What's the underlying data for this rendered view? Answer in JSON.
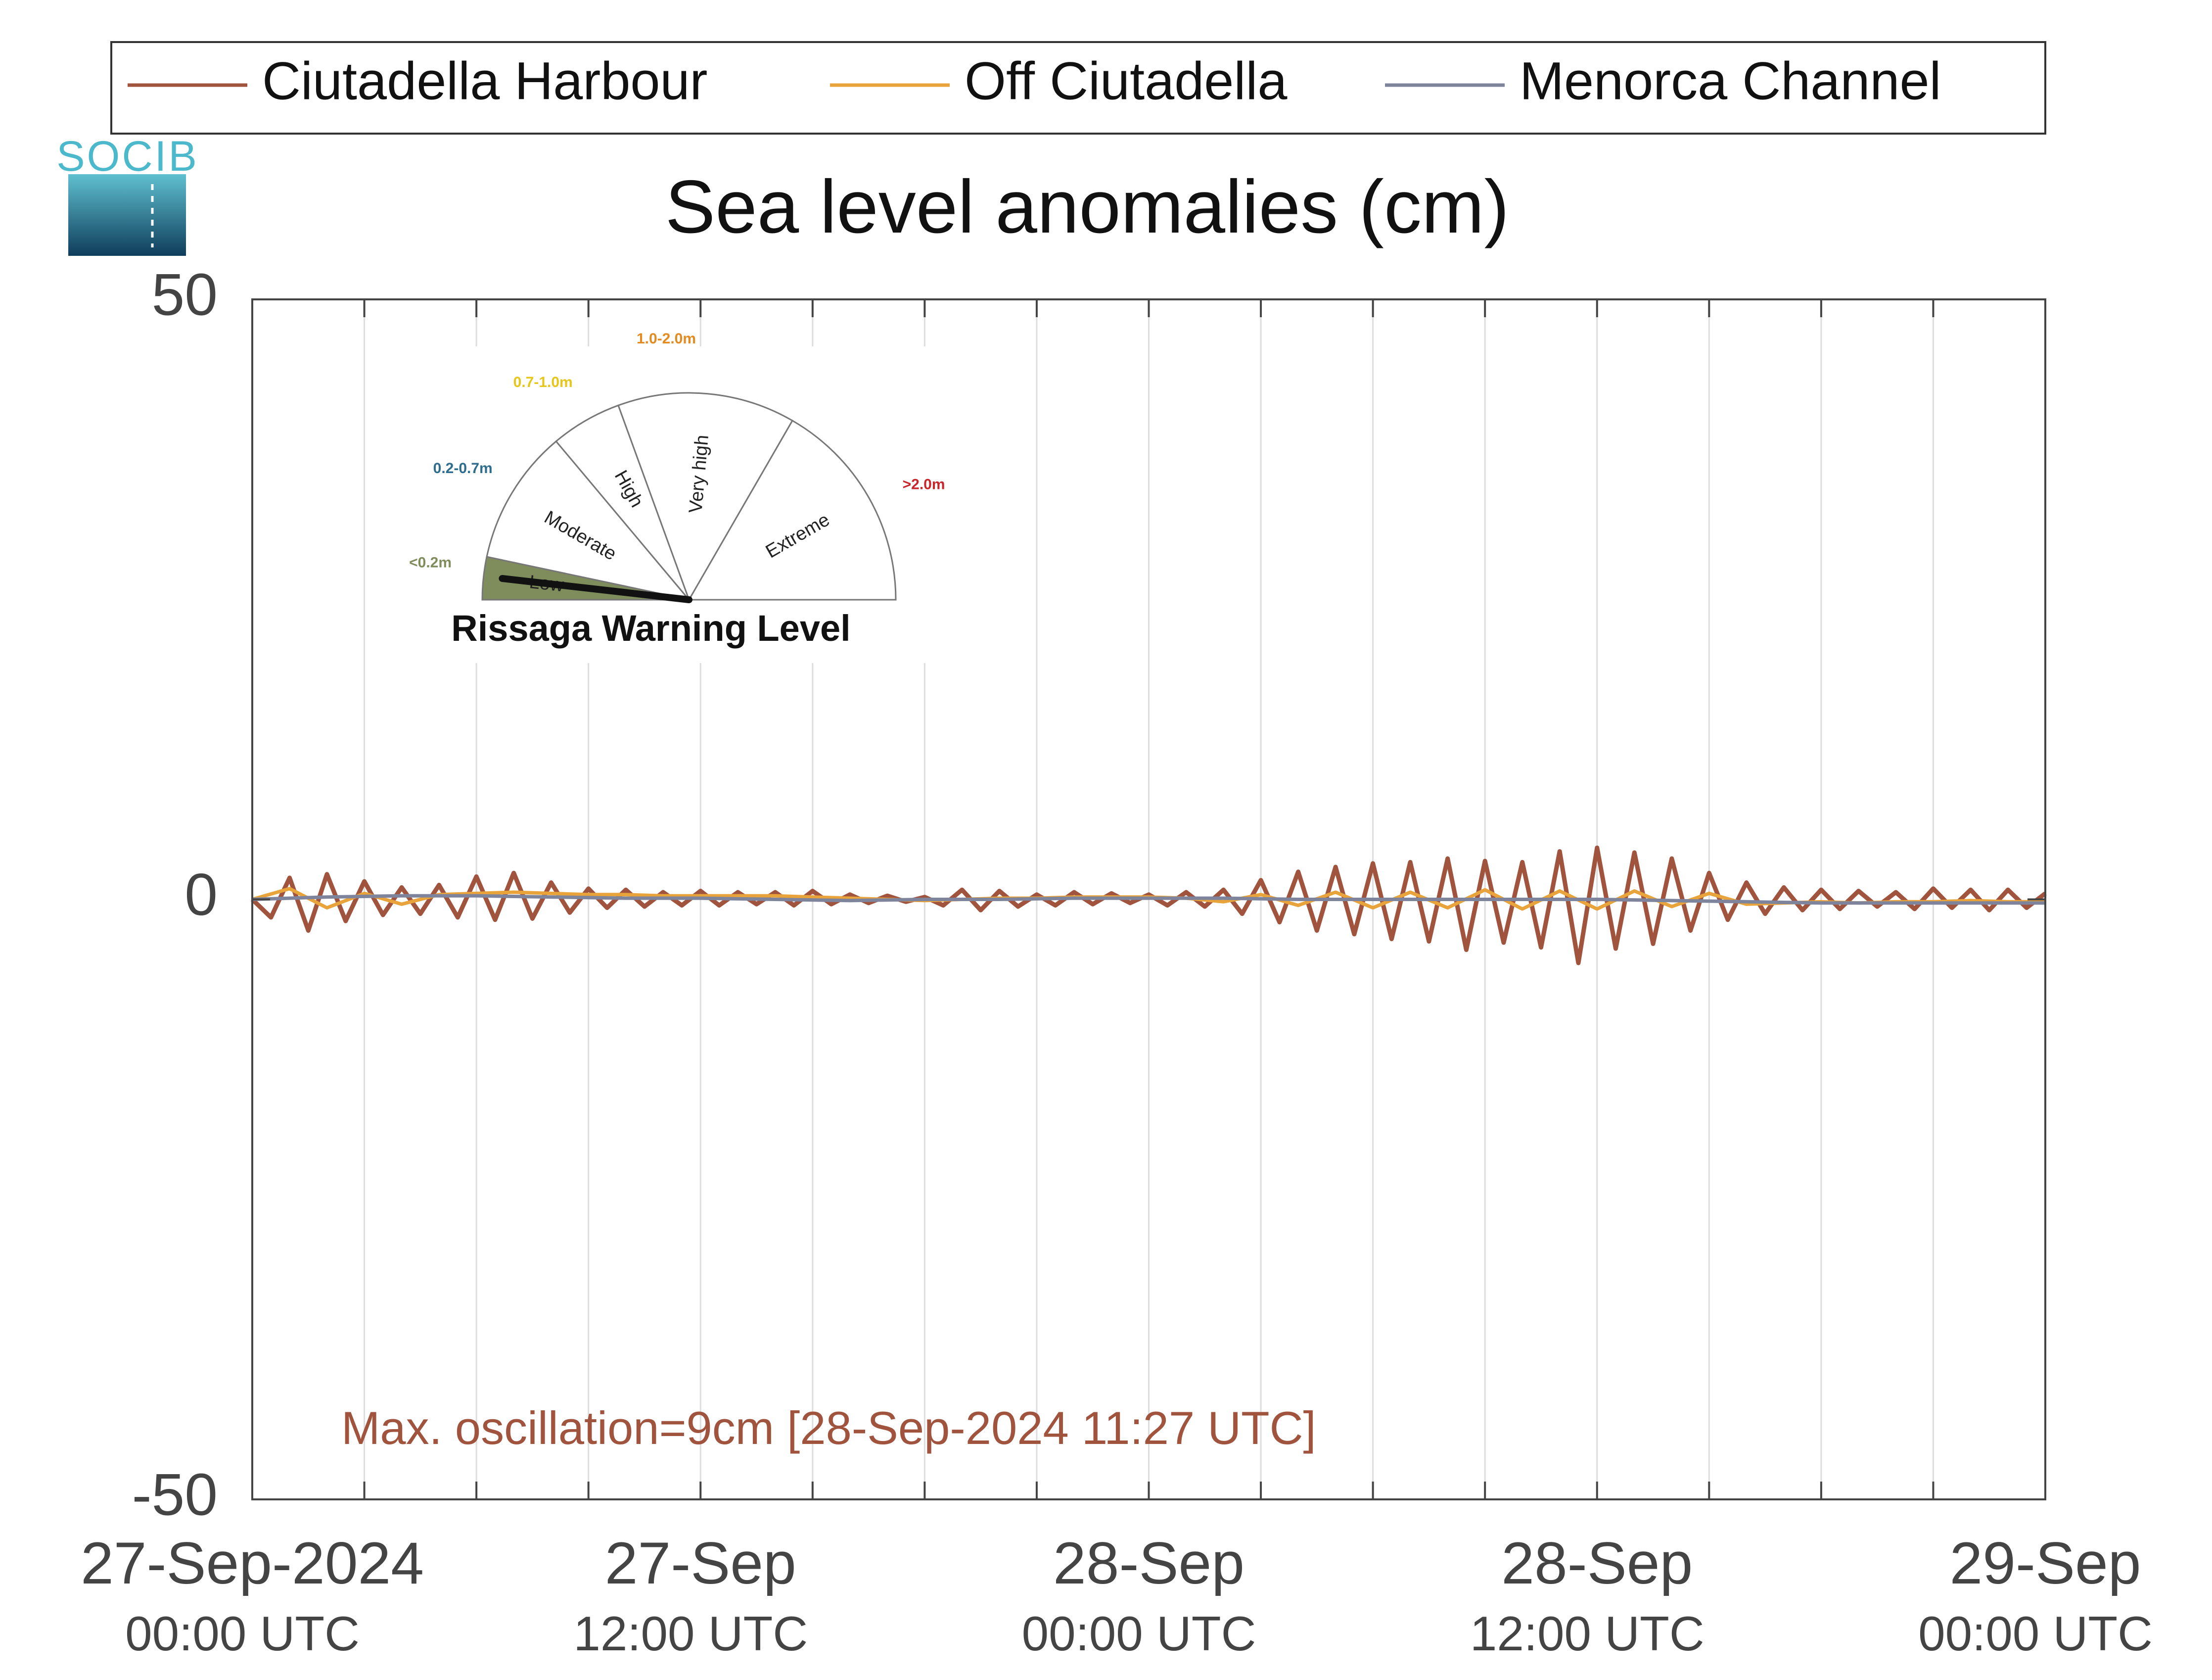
{
  "logo": {
    "text": "SOCIB"
  },
  "legend": {
    "entries": [
      {
        "label": "Ciutadella Harbour",
        "color": "#a0533d"
      },
      {
        "label": "Off Ciutadella",
        "color": "#e8a33a"
      },
      {
        "label": "Menorca Channel",
        "color": "#7d849c"
      }
    ]
  },
  "colors": {
    "axis": "#444444",
    "grid": "#dddddd",
    "annotation": "#a0533d",
    "background": "#ffffff"
  },
  "annotation": {
    "text": "Max. oscillation=9cm [28-Sep-2024 11:27 UTC]"
  },
  "gauge": {
    "title": "Rissaga Warning Level",
    "current_level": "Low",
    "levels": [
      {
        "name": "Low",
        "range": "<0.2m",
        "color": "#7f8c5b",
        "active": true
      },
      {
        "name": "Moderate",
        "range": "0.2-0.7m",
        "color": "#2e6d8e",
        "active": false
      },
      {
        "name": "High",
        "range": "0.7-1.0m",
        "color": "#e6c619",
        "active": false
      },
      {
        "name": "Very high",
        "range": "1.0-2.0m",
        "color": "#e58a1f",
        "active": false
      },
      {
        "name": "Extreme",
        "range": ">2.0m",
        "color": "#c9252b",
        "active": false
      }
    ]
  },
  "chart_data": {
    "type": "line",
    "title": "Sea level anomalies (cm)",
    "xlabel": "",
    "ylabel": "",
    "ylim": [
      -50,
      50
    ],
    "y_ticks": [
      -50,
      0,
      50
    ],
    "x_range_hours": [
      0,
      48
    ],
    "x_ticks": [
      {
        "hour": 0,
        "date": "27-Sep-2024",
        "time": "00:00 UTC"
      },
      {
        "hour": 12,
        "date": "27-Sep",
        "time": "12:00 UTC"
      },
      {
        "hour": 24,
        "date": "28-Sep",
        "time": "00:00 UTC"
      },
      {
        "hour": 36,
        "date": "28-Sep",
        "time": "12:00 UTC"
      },
      {
        "hour": 48,
        "date": "29-Sep",
        "time": "00:00 UTC"
      }
    ],
    "grid_every_hours": 3,
    "grid": true,
    "legend_position": "top",
    "series": [
      {
        "name": "Ciutadella Harbour",
        "color": "#a0533d",
        "x": [
          0,
          0.5,
          1,
          1.5,
          2,
          2.5,
          3,
          3.5,
          4,
          4.5,
          5,
          5.5,
          6,
          6.5,
          7,
          7.5,
          8,
          8.5,
          9,
          9.5,
          10,
          10.5,
          11,
          11.5,
          12,
          12.5,
          13,
          13.5,
          14,
          14.5,
          15,
          15.5,
          16,
          16.5,
          17,
          17.5,
          18,
          18.5,
          19,
          19.5,
          20,
          20.5,
          21,
          21.5,
          22,
          22.5,
          23,
          23.5,
          24,
          24.5,
          25,
          25.5,
          26,
          26.5,
          27,
          27.5,
          28,
          28.5,
          29,
          29.5,
          30,
          30.5,
          31,
          31.5,
          32,
          32.5,
          33,
          33.5,
          34,
          34.5,
          35,
          35.5,
          36,
          36.5,
          37,
          37.5,
          38,
          38.5,
          39,
          39.5,
          40,
          40.5,
          41,
          41.5,
          42,
          42.5,
          43,
          43.5,
          44,
          44.5,
          45,
          45.5,
          46,
          46.5,
          47,
          47.5,
          48
        ],
        "y": [
          0,
          -1.5,
          1.8,
          -2.6,
          2.1,
          -1.8,
          1.5,
          -1.3,
          1.0,
          -1.2,
          1.2,
          -1.5,
          1.9,
          -1.7,
          2.2,
          -1.6,
          1.4,
          -1.1,
          0.9,
          -0.7,
          0.8,
          -0.6,
          0.6,
          -0.5,
          0.7,
          -0.5,
          0.6,
          -0.4,
          0.6,
          -0.5,
          0.7,
          -0.4,
          0.4,
          -0.3,
          0.3,
          -0.2,
          0.2,
          -0.5,
          0.8,
          -0.9,
          0.7,
          -0.6,
          0.4,
          -0.5,
          0.6,
          -0.4,
          0.5,
          -0.3,
          0.4,
          -0.5,
          0.6,
          -0.6,
          0.8,
          -1.2,
          1.6,
          -1.9,
          2.3,
          -2.6,
          2.7,
          -2.9,
          3.0,
          -3.3,
          3.1,
          -3.5,
          3.4,
          -4.2,
          3.2,
          -3.6,
          3.1,
          -4.0,
          4.0,
          -5.3,
          4.3,
          -4.1,
          3.9,
          -3.7,
          3.4,
          -2.6,
          2.2,
          -1.7,
          1.4,
          -1.2,
          1.0,
          -0.9,
          0.8,
          -0.8,
          0.7,
          -0.6,
          0.6,
          -0.8,
          0.9,
          -0.7,
          0.8,
          -0.9,
          0.8,
          -0.7,
          0.5
        ]
      },
      {
        "name": "Off Ciutadella",
        "color": "#e8a33a",
        "x": [
          0,
          1,
          2,
          3,
          4,
          5,
          6,
          7,
          8,
          9,
          10,
          11,
          12,
          13,
          14,
          15,
          16,
          17,
          18,
          19,
          20,
          21,
          22,
          23,
          24,
          25,
          26,
          27,
          28,
          29,
          30,
          31,
          32,
          33,
          34,
          35,
          36,
          37,
          38,
          39,
          40,
          41,
          42,
          43,
          44,
          45,
          46,
          47,
          48
        ],
        "y": [
          0,
          0.9,
          -0.7,
          0.5,
          -0.4,
          0.4,
          0.5,
          0.6,
          0.5,
          0.4,
          0.4,
          0.3,
          0.3,
          0.3,
          0.3,
          0.2,
          0.1,
          0,
          -0.1,
          0,
          0.1,
          0.1,
          0.2,
          0.2,
          0.2,
          0.1,
          -0.2,
          0.4,
          -0.5,
          0.6,
          -0.7,
          0.6,
          -0.7,
          0.8,
          -0.8,
          0.7,
          -0.8,
          0.7,
          -0.6,
          0.5,
          -0.4,
          -0.3,
          -0.2,
          -0.3,
          -0.2,
          -0.2,
          -0.1,
          -0.2,
          -0.2
        ]
      },
      {
        "name": "Menorca Channel",
        "color": "#7d849c",
        "x": [
          0,
          2,
          4,
          6,
          8,
          10,
          12,
          14,
          16,
          18,
          20,
          22,
          24,
          26,
          28,
          30,
          32,
          34,
          36,
          38,
          40,
          42,
          44,
          46,
          48
        ],
        "y": [
          0,
          0.2,
          0.3,
          0.3,
          0.2,
          0.1,
          0.1,
          0,
          -0.1,
          0,
          0,
          0.1,
          0.1,
          0.1,
          0,
          0,
          0,
          0,
          0,
          -0.1,
          -0.2,
          -0.3,
          -0.3,
          -0.3,
          -0.3
        ]
      }
    ]
  }
}
